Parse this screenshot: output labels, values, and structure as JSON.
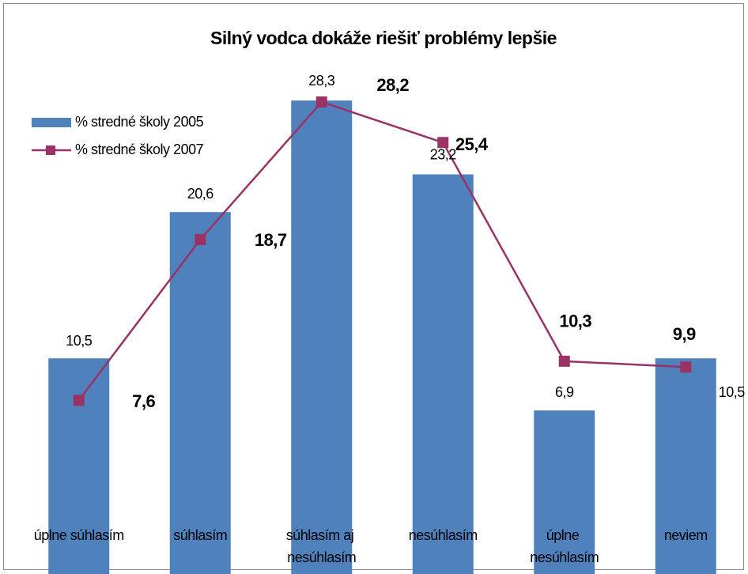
{
  "chart_data": {
    "type": "bar+line",
    "title": "Silný vodca dokáže riešiť problémy lepšie",
    "categories": [
      "úplne súhlasím",
      "súhlasím",
      "súhlasím aj nesúhlasím",
      "nesúhlasím",
      "úplne nesúhlasím",
      "neviem"
    ],
    "series": [
      {
        "name": "% stredné školy 2005",
        "type": "bar",
        "color": "#4f81bd",
        "values": [
          10.5,
          20.6,
          28.3,
          23.2,
          6.9,
          10.5
        ],
        "value_labels": [
          "10,5",
          "20,6",
          "28,3",
          "23,2",
          "6,9",
          "10,5"
        ]
      },
      {
        "name": "% stredné školy 2007",
        "type": "line",
        "color": "#9b3266",
        "values": [
          7.6,
          18.7,
          28.2,
          25.4,
          10.3,
          9.9
        ],
        "value_labels": [
          "7,6",
          "18,7",
          "28,2",
          "25,4",
          "10,3",
          "9,9"
        ]
      }
    ],
    "ylim": [
      -4.5,
      30
    ],
    "legend": "top-left"
  }
}
